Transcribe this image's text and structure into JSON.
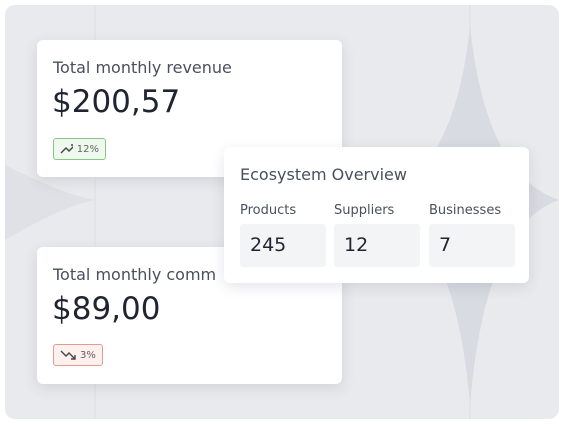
{
  "revenue_card": {
    "title": "Total monthly revenue",
    "amount": "$200,57",
    "change": "12%"
  },
  "commission_card": {
    "title": "Total monthly comm",
    "amount": "$89,00",
    "change": "3%"
  },
  "ecosystem": {
    "title": "Ecosystem Overview",
    "stats": [
      {
        "label": "Products",
        "value": 245
      },
      {
        "label": "Suppliers",
        "value": 12
      },
      {
        "label": "Businesses",
        "value": 7
      }
    ]
  }
}
